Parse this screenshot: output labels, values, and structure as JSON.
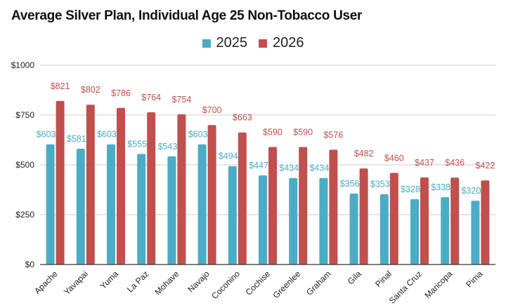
{
  "chart_data": {
    "type": "bar",
    "title": "Average Silver Plan, Individual Age 25 Non-Tobacco User",
    "xlabel": "",
    "ylabel": "",
    "ylim": [
      0,
      1000
    ],
    "yticks": [
      0,
      250,
      500,
      750,
      1000
    ],
    "ytick_labels": [
      "$0",
      "$250",
      "$500",
      "$750",
      "$1000"
    ],
    "grid": true,
    "legend_position": "top-center",
    "categories": [
      "Apache",
      "Yavapai",
      "Yuma",
      "La Paz",
      "Mohave",
      "Navajo",
      "Coconino",
      "Cochise",
      "Greenlee",
      "Graham",
      "Gila",
      "Pinal",
      "Santa Cruz",
      "Maricopa",
      "Pima"
    ],
    "series": [
      {
        "name": "2025",
        "color": "#4bacc6",
        "values": [
          603,
          581,
          603,
          555,
          543,
          603,
          494,
          447,
          434,
          434,
          356,
          353,
          328,
          338,
          320
        ]
      },
      {
        "name": "2026",
        "color": "#c0504d",
        "values": [
          821,
          802,
          786,
          764,
          754,
          700,
          663,
          590,
          590,
          576,
          482,
          460,
          437,
          436,
          422
        ]
      }
    ],
    "value_prefix": "$"
  }
}
